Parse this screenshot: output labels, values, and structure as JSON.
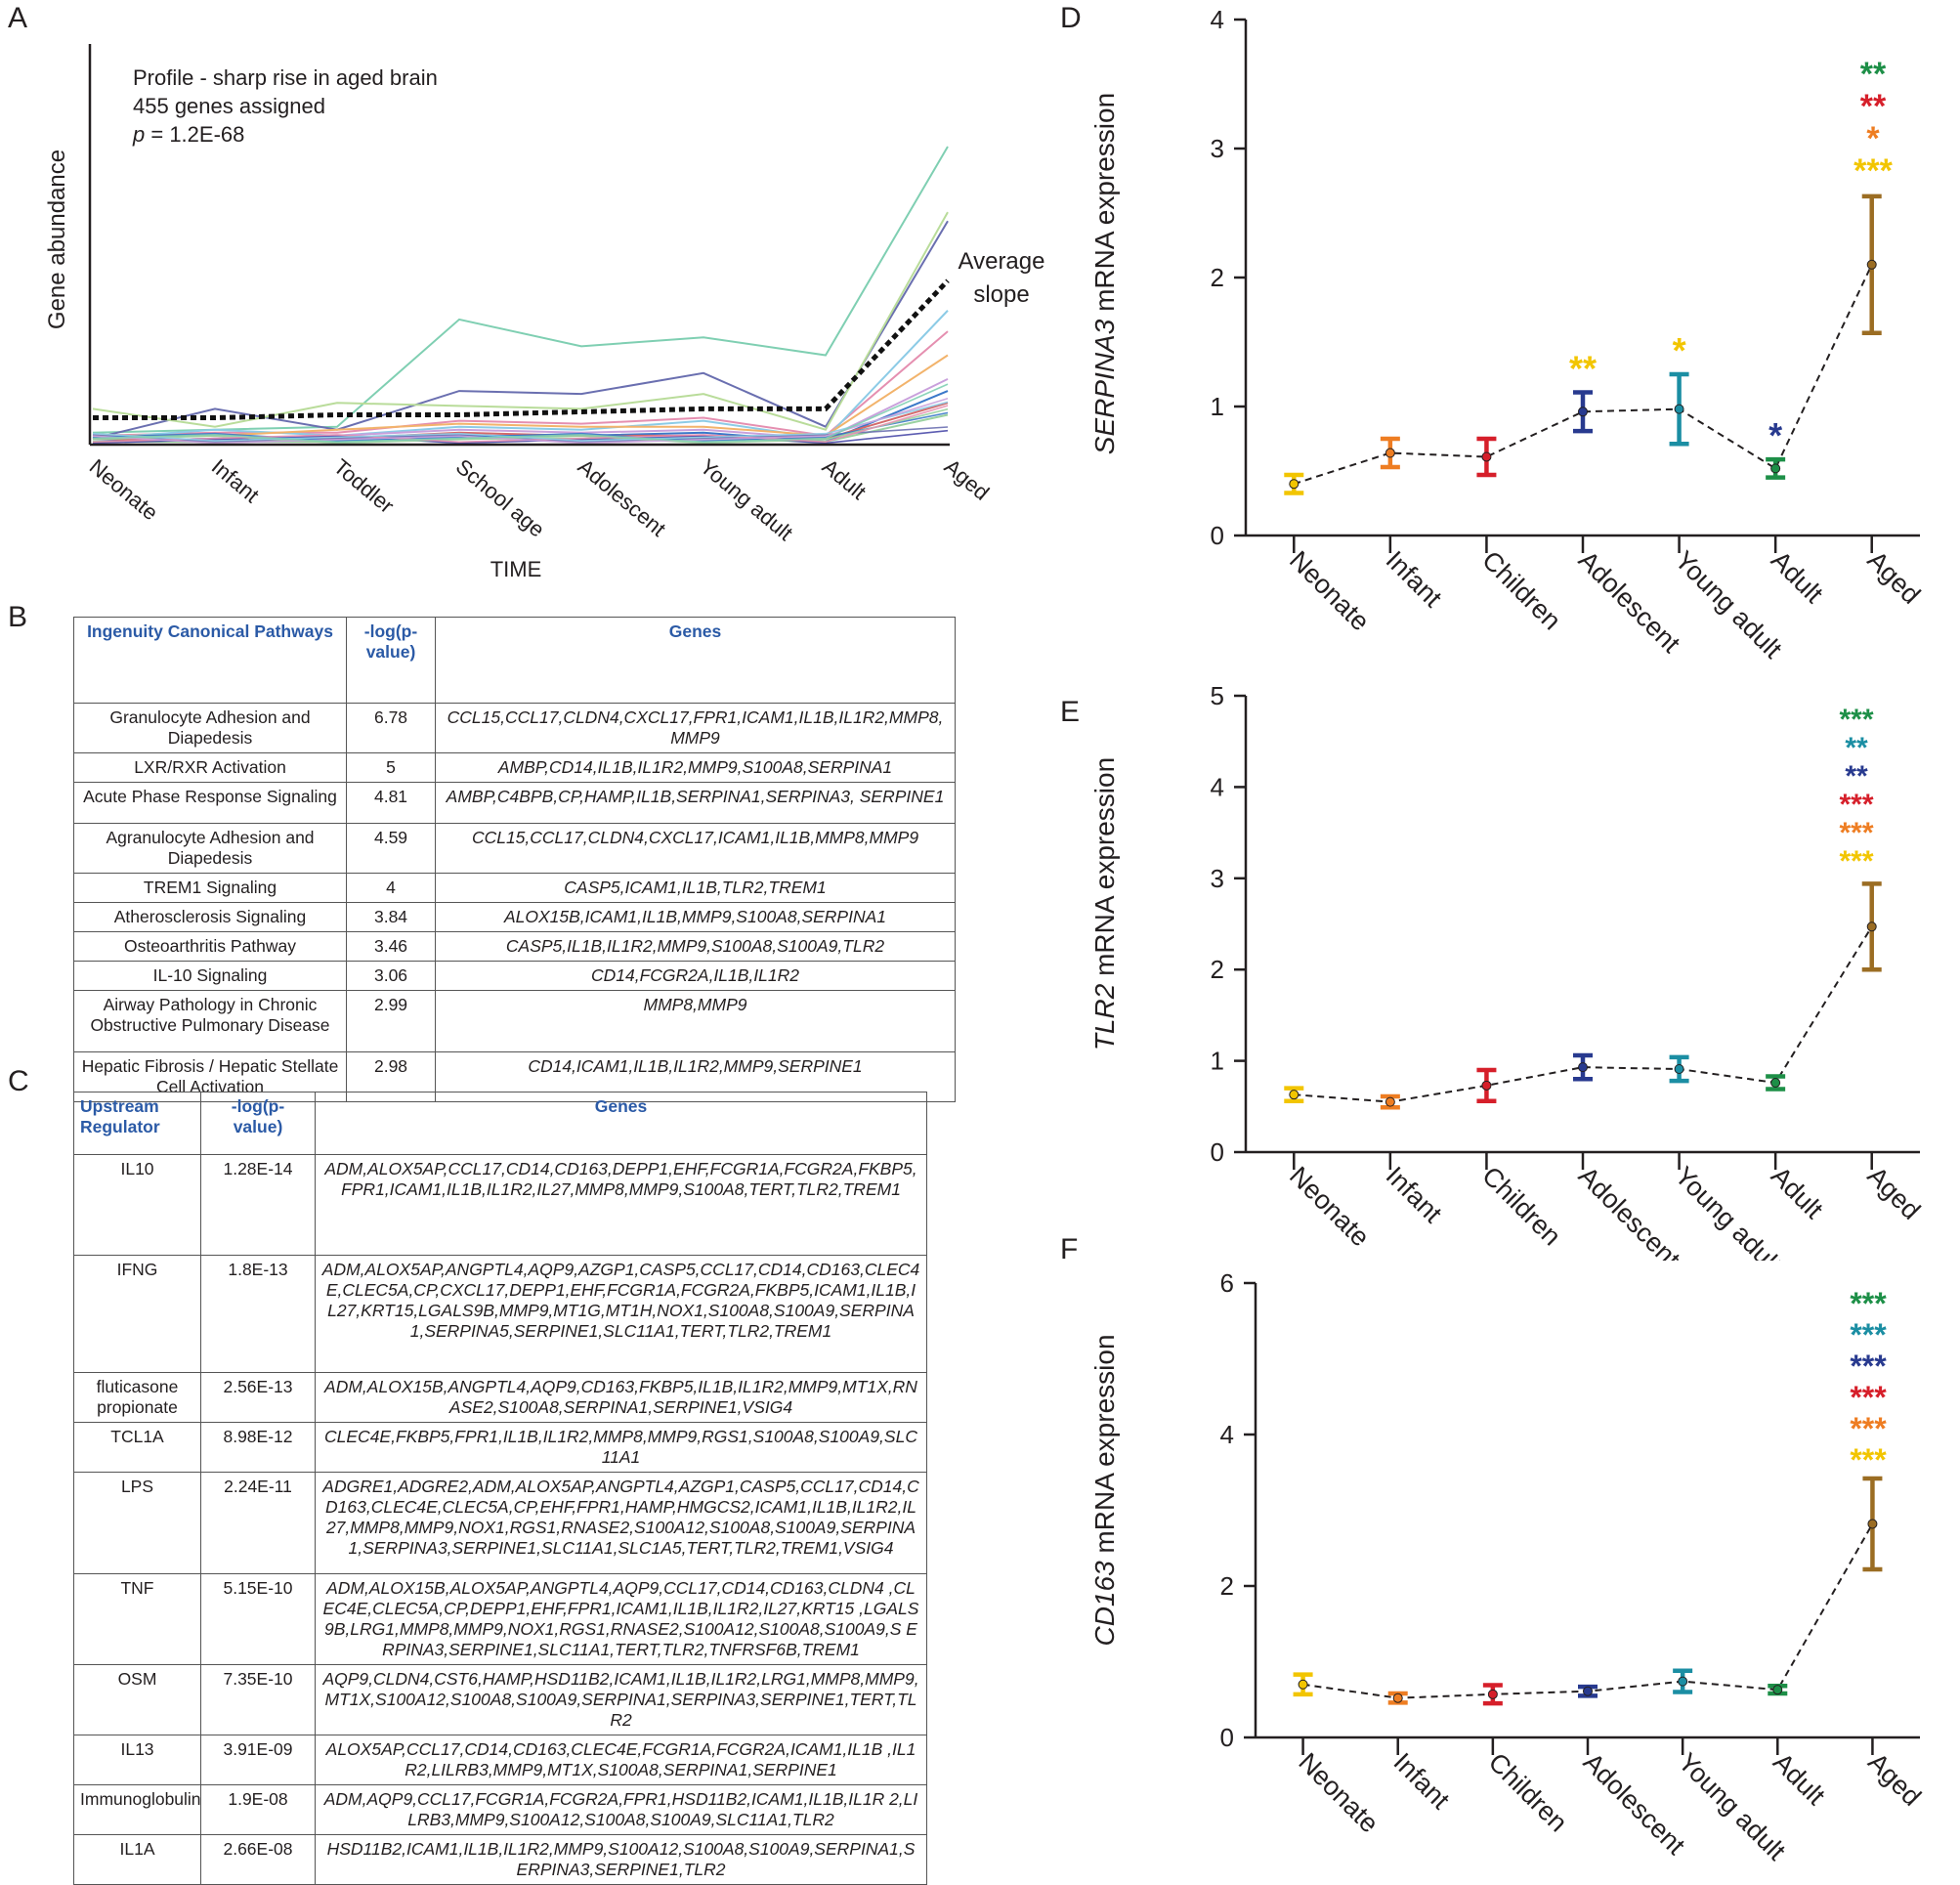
{
  "panelA": {
    "letter": "A",
    "profile_lines": [
      "Profile - sharp rise in aged brain",
      "455 genes assigned"
    ],
    "p_prefix": "p",
    "p_value": " = 1.2E-68",
    "y_label": "Gene abundance",
    "x_label": "TIME",
    "average_label_1": "Average",
    "average_label_2": "slope",
    "timepoints": [
      "Neonate",
      "Infant",
      "Toddler",
      "School age",
      "Adolescent",
      "Young adult",
      "Adult",
      "Aged"
    ],
    "average_slope": [
      0.09,
      0.09,
      0.1,
      0.1,
      0.11,
      0.12,
      0.12,
      0.55
    ],
    "example_profiles": [
      {
        "color": "#7fcfb2",
        "values": [
          0.04,
          0.05,
          0.06,
          0.42,
          0.33,
          0.36,
          0.3,
          1.0
        ]
      },
      {
        "color": "#6a6fb0",
        "values": [
          0.02,
          0.12,
          0.05,
          0.18,
          0.17,
          0.24,
          0.06,
          0.75
        ]
      },
      {
        "color": "#b9dc9a",
        "values": [
          0.12,
          0.06,
          0.14,
          0.13,
          0.12,
          0.17,
          0.05,
          0.78
        ]
      },
      {
        "color": "#e58fb0",
        "values": [
          0.03,
          0.04,
          0.04,
          0.08,
          0.07,
          0.09,
          0.03,
          0.38
        ]
      },
      {
        "color": "#8ccbe6",
        "values": [
          0.02,
          0.05,
          0.03,
          0.06,
          0.05,
          0.08,
          0.02,
          0.45
        ]
      },
      {
        "color": "#f2b36b",
        "values": [
          0.03,
          0.03,
          0.05,
          0.07,
          0.06,
          0.06,
          0.03,
          0.3
        ]
      },
      {
        "color": "#c9a0dc",
        "values": [
          0.01,
          0.02,
          0.03,
          0.05,
          0.04,
          0.05,
          0.02,
          0.22
        ]
      },
      {
        "color": "#3a78c9",
        "values": [
          0.01,
          0.02,
          0.02,
          0.03,
          0.03,
          0.04,
          0.01,
          0.18
        ]
      },
      {
        "color": "#d36a6a",
        "values": [
          0.02,
          0.01,
          0.02,
          0.04,
          0.03,
          0.03,
          0.02,
          0.14
        ]
      },
      {
        "color": "#9ad1a0",
        "values": [
          0.01,
          0.01,
          0.01,
          0.02,
          0.02,
          0.02,
          0.01,
          0.1
        ]
      }
    ]
  },
  "tableB": {
    "letter": "B",
    "headers": [
      "Ingenuity Canonical Pathways",
      "-log(p-value)",
      "Genes"
    ],
    "rows": [
      {
        "name": "Granulocyte Adhesion and Diapedesis",
        "p": "6.78",
        "genes": "CCL15,CCL17,CLDN4,CXCL17,FPR1,ICAM1,IL1B,IL1R2,MMP8,MMP9"
      },
      {
        "name": "LXR/RXR Activation",
        "p": "5",
        "genes": "AMBP,CD14,IL1B,IL1R2,MMP9,S100A8,SERPINA1"
      },
      {
        "name": "Acute Phase Response Signaling",
        "p": "4.81",
        "genes": "AMBP,C4BPB,CP,HAMP,IL1B,SERPINA1,SERPINA3, SERPINE1"
      },
      {
        "name": "Agranulocyte Adhesion and Diapedesis",
        "p": "4.59",
        "genes": "CCL15,CCL17,CLDN4,CXCL17,ICAM1,IL1B,MMP8,MMP9"
      },
      {
        "name": "TREM1 Signaling",
        "p": "4",
        "genes": "CASP5,ICAM1,IL1B,TLR2,TREM1"
      },
      {
        "name": "Atherosclerosis Signaling",
        "p": "3.84",
        "genes": "ALOX15B,ICAM1,IL1B,MMP9,S100A8,SERPINA1"
      },
      {
        "name": "Osteoarthritis Pathway",
        "p": "3.46",
        "genes": "CASP5,IL1B,IL1R2,MMP9,S100A8,S100A9,TLR2"
      },
      {
        "name": "IL-10 Signaling",
        "p": "3.06",
        "genes": "CD14,FCGR2A,IL1B,IL1R2"
      },
      {
        "name": "Airway Pathology in Chronic Obstructive Pulmonary Disease",
        "p": "2.99",
        "genes": "MMP8,MMP9"
      },
      {
        "name": "Hepatic Fibrosis / Hepatic Stellate Cell Activation",
        "p": "2.98",
        "genes": "CD14,ICAM1,IL1B,IL1R2,MMP9,SERPINE1"
      }
    ]
  },
  "tableC": {
    "letter": "C",
    "headers": [
      "Upstream Regulator",
      "-log(p-value)",
      "Genes"
    ],
    "rows": [
      {
        "name": "IL10",
        "p": "1.28E-14",
        "genes": "ADM,ALOX5AP,CCL17,CD14,CD163,DEPP1,EHF,FCGR1A,FCGR2A,FKBP5,FPR1,ICAM1,IL1B,IL1R2,IL27,MMP8,MMP9,S100A8,TERT,TLR2,TREM1"
      },
      {
        "name": "IFNG",
        "p": "1.8E-13",
        "genes": "ADM,ALOX5AP,ANGPTL4,AQP9,AZGP1,CASP5,CCL17,CD14,CD163,CLEC4E,CLEC5A,CP,CXCL17,DEPP1,EHF,FCGR1A,FCGR2A,FKBP5,ICAM1,IL1B,IL27,KRT15,LGALS9B,MMP9,MT1G,MT1H,NOX1,S100A8,S100A9,SERPINA1,SERPINA5,SERPINE1,SLC11A1,TERT,TLR2,TREM1"
      },
      {
        "name": "fluticasone propionate",
        "p": "2.56E-13",
        "genes": "ADM,ALOX15B,ANGPTL4,AQP9,CD163,FKBP5,IL1B,IL1R2,MMP9,MT1X,RNASE2,S100A8,SERPINA1,SERPINE1,VSIG4"
      },
      {
        "name": "TCL1A",
        "p": "8.98E-12",
        "genes": "CLEC4E,FKBP5,FPR1,IL1B,IL1R2,MMP8,MMP9,RGS1,S100A8,S100A9,SLC11A1"
      },
      {
        "name": "LPS",
        "p": "2.24E-11",
        "genes": "ADGRE1,ADGRE2,ADM,ALOX5AP,ANGPTL4,AZGP1,CASP5,CCL17,CD14,CD163,CLEC4E,CLEC5A,CP,EHF,FPR1,HAMP,HMGCS2,ICAM1,IL1B,IL1R2,IL27,MMP8,MMP9,NOX1,RGS1,RNASE2,S100A12,S100A8,S100A9,SERPINA1,SERPINA3,SERPINE1,SLC11A1,SLC1A5,TERT,TLR2,TREM1,VSIG4"
      },
      {
        "name": "TNF",
        "p": "5.15E-10",
        "genes": "ADM,ALOX15B,ALOX5AP,ANGPTL4,AQP9,CCL17,CD14,CD163,CLDN4 ,CLEC4E,CLEC5A,CP,DEPP1,EHF,FPR1,ICAM1,IL1B,IL1R2,IL27,KRT15 ,LGALS9B,LRG1,MMP8,MMP9,NOX1,RGS1,RNASE2,S100A12,S100A8,S100A9,S ERPINA3,SERPINE1,SLC11A1,TERT,TLR2,TNFRSF6B,TREM1"
      },
      {
        "name": "OSM",
        "p": "7.35E-10",
        "genes": "AQP9,CLDN4,CST6,HAMP,HSD11B2,ICAM1,IL1B,IL1R2,LRG1,MMP8,MMP9,MT1X,S100A12,S100A8,S100A9,SERPINA1,SERPINA3,SERPINE1,TERT,TLR2"
      },
      {
        "name": "IL13",
        "p": "3.91E-09",
        "genes": "ALOX5AP,CCL17,CD14,CD163,CLEC4E,FCGR1A,FCGR2A,ICAM1,IL1B ,IL1R2,LILRB3,MMP9,MT1X,S100A8,SERPINA1,SERPINE1"
      },
      {
        "name": "Immunoglobulin",
        "p": "1.9E-08",
        "genes": "ADM,AQP9,CCL17,FCGR1A,FCGR2A,FPR1,HSD11B2,ICAM1,IL1B,IL1R 2,LILRB3,MMP9,S100A12,S100A8,S100A9,SLC11A1,TLR2"
      },
      {
        "name": "IL1A",
        "p": "2.66E-08",
        "genes": "HSD11B2,ICAM1,IL1B,IL1R2,MMP9,S100A12,S100A8,S100A9,SERPINA1,SERPINA3,SERPINE1,TLR2"
      }
    ]
  },
  "colors": {
    "neonate": "#f2c500",
    "infant": "#ee7d22",
    "children": "#d61f2a",
    "adolescent": "#283a8f",
    "young_adult": "#1b8ea3",
    "adult": "#1d8f47",
    "aged": "#9b6d23"
  },
  "charts": [
    {
      "id": "D",
      "letter": "D",
      "gene": "SERPINA3",
      "ylabel_suffix": " mRNA expression",
      "categories": [
        "Neonate",
        "Infant",
        "Children",
        "Adolescent",
        "Young adult",
        "Adult",
        "Aged"
      ],
      "means": [
        0.4,
        0.64,
        0.61,
        0.96,
        0.98,
        0.52,
        2.1
      ],
      "errors": [
        0.07,
        0.11,
        0.14,
        0.15,
        0.27,
        0.07,
        0.53
      ],
      "ylim": [
        0,
        4
      ],
      "yticks": [
        "0",
        "1",
        "2",
        "3",
        "4"
      ],
      "ytick_values": [
        0,
        1,
        2,
        3,
        4
      ],
      "sig_above_bar": [
        {
          "index": 3,
          "text": "**",
          "color": "#f2c500"
        },
        {
          "index": 4,
          "text": "*",
          "color": "#f2c500"
        },
        {
          "index": 5,
          "text": "*",
          "color": "#283a8f"
        }
      ],
      "aged_stars": [
        {
          "text": "**",
          "color": "#1d8f47"
        },
        {
          "text": "**",
          "color": "#d61f2a"
        },
        {
          "text": "*",
          "color": "#ee7d22"
        },
        {
          "text": "***",
          "color": "#f2c500"
        }
      ]
    },
    {
      "id": "E",
      "letter": "E",
      "gene": "TLR2",
      "ylabel_suffix": " mRNA expression",
      "categories": [
        "Neonate",
        "Infant",
        "Children",
        "Adolescent",
        "Young adult",
        "Adult",
        "Aged"
      ],
      "means": [
        0.63,
        0.55,
        0.73,
        0.93,
        0.91,
        0.76,
        2.47
      ],
      "errors": [
        0.07,
        0.06,
        0.17,
        0.13,
        0.13,
        0.07,
        0.47
      ],
      "ylim": [
        0,
        5
      ],
      "yticks": [
        "0",
        "1",
        "2",
        "3",
        "4",
        "5"
      ],
      "ytick_values": [
        0,
        1,
        2,
        3,
        4,
        5
      ],
      "sig_above_bar": [],
      "aged_stars": [
        {
          "text": "***",
          "color": "#1d8f47"
        },
        {
          "text": "**",
          "color": "#1b8ea3"
        },
        {
          "text": "**",
          "color": "#283a8f"
        },
        {
          "text": "***",
          "color": "#d61f2a"
        },
        {
          "text": "***",
          "color": "#ee7d22"
        },
        {
          "text": "***",
          "color": "#f2c500"
        }
      ]
    },
    {
      "id": "F",
      "letter": "F",
      "gene": "CD163",
      "ylabel_suffix": " mRNA expression",
      "categories": [
        "Neonate",
        "Infant",
        "Children",
        "Adolescent",
        "Young adult",
        "Adult",
        "Aged"
      ],
      "means": [
        0.7,
        0.52,
        0.57,
        0.61,
        0.74,
        0.63,
        2.82
      ],
      "errors": [
        0.13,
        0.06,
        0.12,
        0.06,
        0.14,
        0.05,
        0.6
      ],
      "ylim": [
        0,
        6
      ],
      "yticks": [
        "0",
        "2",
        "4",
        "6"
      ],
      "ytick_values": [
        0,
        2,
        4,
        6
      ],
      "sig_above_bar": [],
      "aged_stars": [
        {
          "text": "***",
          "color": "#1d8f47"
        },
        {
          "text": "***",
          "color": "#1b8ea3"
        },
        {
          "text": "***",
          "color": "#283a8f"
        },
        {
          "text": "***",
          "color": "#d61f2a"
        },
        {
          "text": "***",
          "color": "#ee7d22"
        },
        {
          "text": "***",
          "color": "#f2c500"
        }
      ]
    }
  ]
}
